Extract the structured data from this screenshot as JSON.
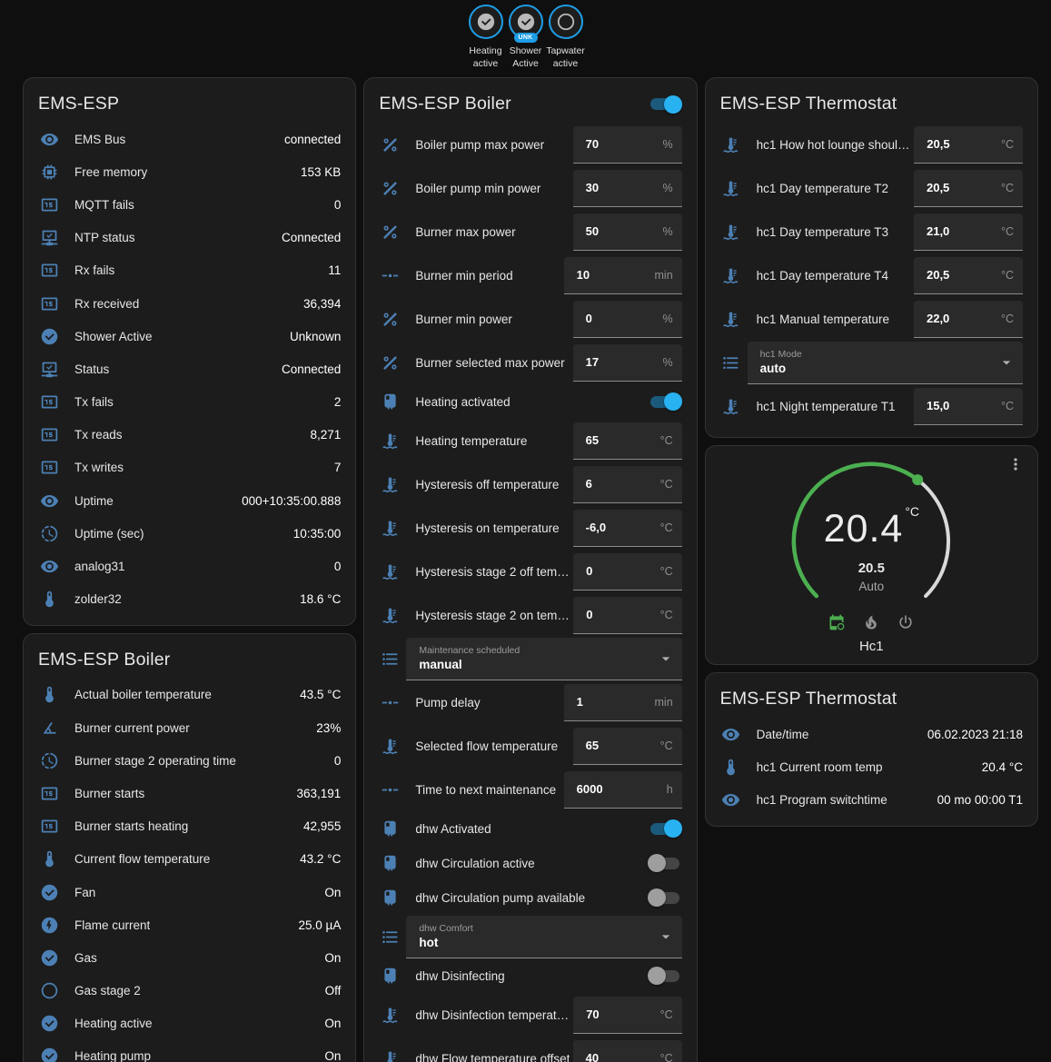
{
  "theme": {
    "accent_blue": "#1e9ee8",
    "icon_blue": "#4c80b4",
    "green": "#4caf50",
    "toggle_on": "#29b2f2",
    "card_bg": "#1c1c1c",
    "page_bg": "#0f0f0f",
    "arc_rest": "#d9d9d9"
  },
  "header": {
    "badges": [
      {
        "icon": "check-circle-icon",
        "label": "Heating active",
        "state": "on"
      },
      {
        "icon": "check-circle-icon",
        "label": "Shower Active",
        "state": "on",
        "pill": "UNK"
      },
      {
        "icon": "circle-outline-icon",
        "label": "Tapwater active",
        "state": "off"
      }
    ]
  },
  "dial": {
    "temp": "20.4",
    "temp_unit": "°C",
    "setpoint": "20.5",
    "mode": "Auto",
    "name": "Hc1",
    "arc_green_color": "#4caf50",
    "actions": [
      "calendar-clock-icon",
      "fire-icon",
      "power-icon"
    ],
    "active_action": 0
  },
  "columns": [
    {
      "cards": [
        {
          "type": "sensors",
          "title": "EMS-ESP",
          "rows": [
            {
              "icon": "eye-icon",
              "label": "EMS Bus",
              "value": "connected"
            },
            {
              "icon": "memory-chip-icon",
              "label": "Free memory",
              "value": "153 KB"
            },
            {
              "icon": "counter-icon",
              "label": "MQTT fails",
              "value": "0"
            },
            {
              "icon": "network-check-icon",
              "label": "NTP status",
              "value": "Connected"
            },
            {
              "icon": "counter-icon",
              "label": "Rx fails",
              "value": "11"
            },
            {
              "icon": "counter-icon",
              "label": "Rx received",
              "value": "36,394"
            },
            {
              "icon": "check-circle-icon",
              "label": "Shower Active",
              "value": "Unknown"
            },
            {
              "icon": "network-check-icon",
              "label": "Status",
              "value": "Connected"
            },
            {
              "icon": "counter-icon",
              "label": "Tx fails",
              "value": "2"
            },
            {
              "icon": "counter-icon",
              "label": "Tx reads",
              "value": "8,271"
            },
            {
              "icon": "counter-icon",
              "label": "Tx writes",
              "value": "7"
            },
            {
              "icon": "eye-icon",
              "label": "Uptime",
              "value": "000+10:35:00.888"
            },
            {
              "icon": "progress-clock-icon",
              "label": "Uptime (sec)",
              "value": "10:35:00"
            },
            {
              "icon": "eye-icon",
              "label": "analog31",
              "value": "0"
            },
            {
              "icon": "thermometer-icon",
              "label": "zolder32",
              "value": "18.6 °C"
            }
          ]
        },
        {
          "type": "sensors",
          "title": "EMS-ESP Boiler",
          "rows": [
            {
              "icon": "thermometer-icon",
              "label": "Actual boiler temperature",
              "value": "43.5 °C"
            },
            {
              "icon": "angle-icon",
              "label": "Burner current power",
              "value": "23%"
            },
            {
              "icon": "progress-clock-icon",
              "label": "Burner stage 2 operating time",
              "value": "0"
            },
            {
              "icon": "counter-icon",
              "label": "Burner starts",
              "value": "363,191"
            },
            {
              "icon": "counter-icon",
              "label": "Burner starts heating",
              "value": "42,955"
            },
            {
              "icon": "thermometer-icon",
              "label": "Current flow temperature",
              "value": "43.2 °C"
            },
            {
              "icon": "check-circle-icon",
              "label": "Fan",
              "value": "On"
            },
            {
              "icon": "flash-circle-icon",
              "label": "Flame current",
              "value": "25.0 µA"
            },
            {
              "icon": "check-circle-icon",
              "label": "Gas",
              "value": "On"
            },
            {
              "icon": "circle-outline-icon",
              "label": "Gas stage 2",
              "value": "Off"
            },
            {
              "icon": "check-circle-icon",
              "label": "Heating active",
              "value": "On"
            },
            {
              "icon": "check-circle-icon",
              "label": "Heating pump",
              "value": "On"
            }
          ]
        }
      ]
    },
    {
      "cards": [
        {
          "type": "controls",
          "title": "EMS-ESP Boiler",
          "header_toggle": "on",
          "rows": [
            {
              "icon": "percent-icon",
              "label": "Boiler pump max power",
              "input": {
                "value": "70",
                "unit": "%"
              }
            },
            {
              "icon": "percent-icon",
              "label": "Boiler pump min power",
              "input": {
                "value": "30",
                "unit": "%"
              }
            },
            {
              "icon": "percent-icon",
              "label": "Burner max power",
              "input": {
                "value": "50",
                "unit": "%"
              }
            },
            {
              "icon": "ray-vertex-icon",
              "label": "Burner min period",
              "input": {
                "value": "10",
                "unit": "min"
              }
            },
            {
              "icon": "percent-icon",
              "label": "Burner min power",
              "input": {
                "value": "0",
                "unit": "%"
              }
            },
            {
              "icon": "percent-icon",
              "label": "Burner selected max power",
              "input": {
                "value": "17",
                "unit": "%"
              }
            },
            {
              "icon": "water-boiler-icon",
              "label": "Heating activated",
              "toggle": "on"
            },
            {
              "icon": "coolant-temperature-icon",
              "label": "Heating temperature",
              "input": {
                "value": "65",
                "unit": "°C"
              }
            },
            {
              "icon": "coolant-temperature-icon",
              "label": "Hysteresis off temperature",
              "input": {
                "value": "6",
                "unit": "°C"
              }
            },
            {
              "icon": "coolant-temperature-icon",
              "label": "Hysteresis on temperature",
              "input": {
                "value": "-6,0",
                "unit": "°C"
              }
            },
            {
              "icon": "coolant-temperature-icon",
              "label": "Hysteresis stage 2 off temp...",
              "input": {
                "value": "0",
                "unit": "°C"
              }
            },
            {
              "icon": "coolant-temperature-icon",
              "label": "Hysteresis stage 2 on temp...",
              "input": {
                "value": "0",
                "unit": "°C"
              }
            },
            {
              "icon": "list-icon",
              "select": {
                "label": "Maintenance scheduled",
                "value": "manual"
              }
            },
            {
              "icon": "ray-vertex-icon",
              "label": "Pump delay",
              "input": {
                "value": "1",
                "unit": "min"
              }
            },
            {
              "icon": "coolant-temperature-icon",
              "label": "Selected flow temperature",
              "input": {
                "value": "65",
                "unit": "°C"
              }
            },
            {
              "icon": "ray-vertex-icon",
              "label": "Time to next maintenance",
              "input": {
                "value": "6000",
                "unit": "h"
              }
            },
            {
              "icon": "water-boiler-icon",
              "label": "dhw Activated",
              "toggle": "on"
            },
            {
              "icon": "water-boiler-icon",
              "label": "dhw Circulation active",
              "toggle": "off"
            },
            {
              "icon": "water-boiler-icon",
              "label": "dhw Circulation pump available",
              "toggle": "off"
            },
            {
              "icon": "list-icon",
              "select": {
                "label": "dhw Comfort",
                "value": "hot"
              }
            },
            {
              "icon": "water-boiler-icon",
              "label": "dhw Disinfecting",
              "toggle": "off"
            },
            {
              "icon": "coolant-temperature-icon",
              "label": "dhw Disinfection temperature",
              "input": {
                "value": "70",
                "unit": "°C"
              }
            },
            {
              "icon": "coolant-temperature-icon",
              "label": "dhw Flow temperature offset",
              "input": {
                "value": "40",
                "unit": "°C"
              }
            }
          ]
        }
      ]
    },
    {
      "cards": [
        {
          "type": "controls",
          "title": "EMS-ESP Thermostat",
          "rows": [
            {
              "icon": "coolant-temperature-icon",
              "label": "hc1 How hot lounge should...",
              "input": {
                "value": "20,5",
                "unit": "°C"
              }
            },
            {
              "icon": "coolant-temperature-icon",
              "label": "hc1 Day temperature T2",
              "input": {
                "value": "20,5",
                "unit": "°C"
              }
            },
            {
              "icon": "coolant-temperature-icon",
              "label": "hc1 Day temperature T3",
              "input": {
                "value": "21,0",
                "unit": "°C"
              }
            },
            {
              "icon": "coolant-temperature-icon",
              "label": "hc1 Day temperature T4",
              "input": {
                "value": "20,5",
                "unit": "°C"
              }
            },
            {
              "icon": "coolant-temperature-icon",
              "label": "hc1 Manual temperature",
              "input": {
                "value": "22,0",
                "unit": "°C"
              }
            },
            {
              "icon": "list-icon",
              "select": {
                "label": "hc1 Mode",
                "value": "auto"
              }
            },
            {
              "icon": "coolant-temperature-icon",
              "label": "hc1 Night temperature T1",
              "input": {
                "value": "15,0",
                "unit": "°C"
              }
            }
          ]
        },
        {
          "type": "dial"
        },
        {
          "type": "sensors",
          "title": "EMS-ESP Thermostat",
          "rows": [
            {
              "icon": "eye-icon",
              "label": "Date/time",
              "value": "06.02.2023 21:18"
            },
            {
              "icon": "thermometer-icon",
              "label": "hc1 Current room temp",
              "value": "20.4 °C"
            },
            {
              "icon": "eye-icon",
              "label": "hc1 Program switchtime",
              "value": "00 mo 00:00 T1"
            }
          ]
        }
      ]
    }
  ]
}
